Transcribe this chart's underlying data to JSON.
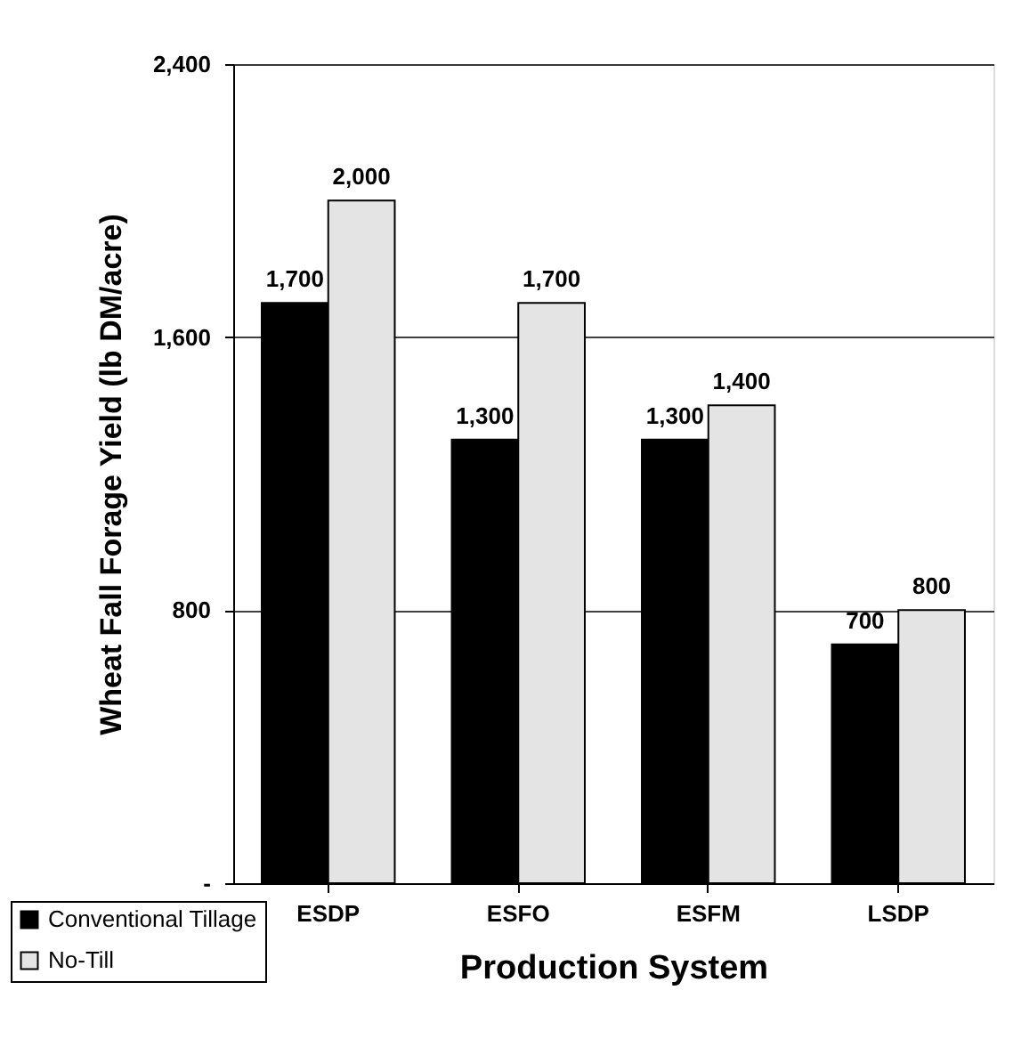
{
  "chart_data": {
    "type": "bar",
    "xlabel": "Production System",
    "ylabel": "Wheat Fall Forage Yield (lb DM/acre)",
    "categories": [
      "ESDP",
      "ESFO",
      "ESFM",
      "LSDP"
    ],
    "series": [
      {
        "name": "Conventional Tillage",
        "color": "#000000",
        "values": [
          1700,
          1300,
          1300,
          700
        ]
      },
      {
        "name": "No-Till",
        "color": "#e4e4e4",
        "values": [
          2000,
          1700,
          1400,
          800
        ]
      }
    ],
    "ylim": [
      0,
      2400
    ],
    "yticks": [
      {
        "value": 0,
        "label": "-"
      },
      800,
      {
        "value": 1600,
        "label": "1,600"
      },
      {
        "value": 2400,
        "label": "2,400"
      }
    ],
    "value_labels": [
      [
        "1,700",
        "1,300",
        "1,300",
        "700"
      ],
      [
        "2,000",
        "1,700",
        "1,400",
        "800"
      ]
    ],
    "grid": "y",
    "legend": "bottom left"
  }
}
